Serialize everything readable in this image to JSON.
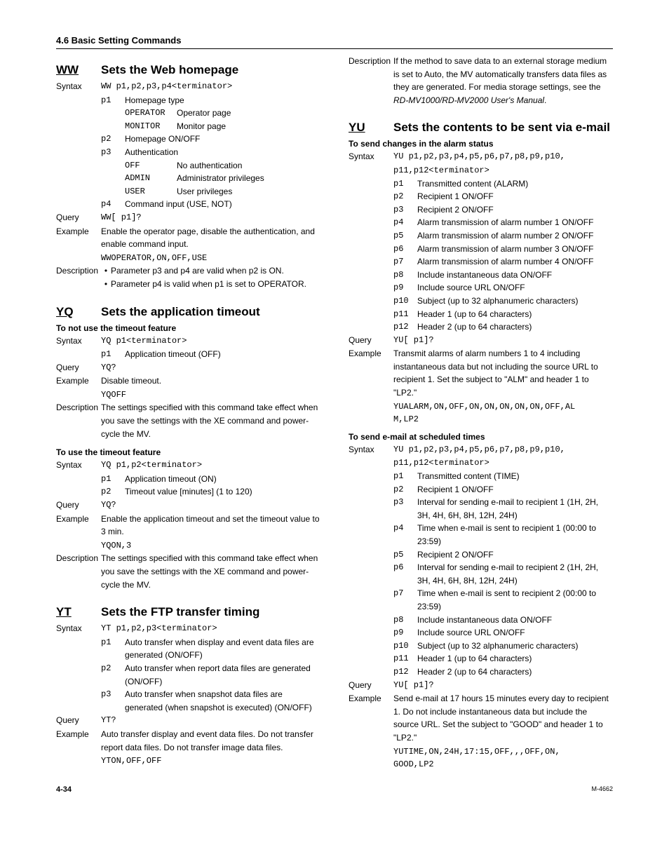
{
  "header": "4.6  Basic Setting Commands",
  "footer": {
    "left": "4-34",
    "right": "M-4662"
  },
  "left": {
    "ww": {
      "code": "WW",
      "title": "Sets the Web homepage",
      "syntax_label": "Syntax",
      "syntax": "WW p1,p2,p3,p4<terminator>",
      "params": [
        {
          "code": "p1",
          "desc": "Homepage type"
        },
        {
          "code": "p2",
          "desc": "Homepage ON/OFF"
        },
        {
          "code": "p3",
          "desc": "Authentication"
        },
        {
          "code": "p4",
          "desc": "Command input (USE, NOT)"
        }
      ],
      "p1_sub": [
        {
          "code": "OPERATOR",
          "desc": "Operator page"
        },
        {
          "code": "MONITOR",
          "desc": "Monitor page"
        }
      ],
      "p3_sub": [
        {
          "code": "OFF",
          "desc": "No authentication"
        },
        {
          "code": "ADMIN",
          "desc": "Administrator privileges"
        },
        {
          "code": "USER",
          "desc": "User privileges"
        }
      ],
      "query_label": "Query",
      "query": "WW[ p1]?",
      "example_label": "Example",
      "example_text": "Enable the operator page, disable the authentication, and enable command input.",
      "example_code": "WWOPERATOR,ON,OFF,USE",
      "desc_label": "Description",
      "desc_bullets": [
        "Parameter p3 and p4 are valid when p2 is ON.",
        "Parameter p4 is valid when p1 is set to OPERATOR."
      ]
    },
    "yq": {
      "code": "YQ",
      "title": "Sets the application timeout",
      "sub1": {
        "heading": "To not use the timeout feature",
        "syntax_label": "Syntax",
        "syntax": "YQ p1<terminator>",
        "params": [
          {
            "code": "p1",
            "desc": "Application timeout (OFF)"
          }
        ],
        "query_label": "Query",
        "query": "YQ?",
        "example_label": "Example",
        "example_text": "Disable timeout.",
        "example_code": "YQOFF",
        "desc_label": "Description",
        "desc": "The settings specified with this command take effect when you save the settings with the XE command and power-cycle the MV."
      },
      "sub2": {
        "heading": "To use the timeout feature",
        "syntax_label": "Syntax",
        "syntax": "YQ p1,p2<terminator>",
        "params": [
          {
            "code": "p1",
            "desc": "Application timeout (ON)"
          },
          {
            "code": "p2",
            "desc": "Timeout value [minutes] (1 to 120)"
          }
        ],
        "query_label": "Query",
        "query": "YQ?",
        "example_label": "Example",
        "example_text": "Enable the application timeout and set the timeout value to 3 min.",
        "example_code": "YQON,3",
        "desc_label": "Description",
        "desc": "The settings specified with this command take effect when you save the settings with the XE command and power-cycle the MV."
      }
    },
    "yt": {
      "code": "YT",
      "title": "Sets the FTP transfer timing",
      "syntax_label": "Syntax",
      "syntax": "YT p1,p2,p3<terminator>",
      "params": [
        {
          "code": "p1",
          "desc": "Auto transfer when display and event data files are generated (ON/OFF)"
        },
        {
          "code": "p2",
          "desc": "Auto transfer when report data files are generated (ON/OFF)"
        },
        {
          "code": "p3",
          "desc": "Auto transfer when snapshot data files are generated (when snapshot is executed) (ON/OFF)"
        }
      ],
      "query_label": "Query",
      "query": "YT?",
      "example_label": "Example",
      "example_text": "Auto transfer display and event data files. Do not transfer report data files. Do not transfer image data files.",
      "example_code": "YTON,OFF,OFF"
    }
  },
  "right": {
    "yt_desc": {
      "label": "Description",
      "text1": "If the method to save data to an external storage medium is set to Auto, the MV automatically transfers data files as they are generated. For media storage settings, see the ",
      "italic": "RD-MV1000/RD-MV2000 User's Manual",
      "text2": "."
    },
    "yu": {
      "code": "YU",
      "title": "Sets the contents to be sent via e-mail",
      "sub1": {
        "heading": "To send changes in the alarm status",
        "syntax_label": "Syntax",
        "syntax1": "YU p1,p2,p3,p4,p5,p6,p7,p8,p9,p10,",
        "syntax2": "p11,p12<terminator>",
        "params": [
          {
            "code": "p1",
            "desc": "Transmitted content (ALARM)"
          },
          {
            "code": "p2",
            "desc": "Recipient 1 ON/OFF"
          },
          {
            "code": "p3",
            "desc": "Recipient 2 ON/OFF"
          },
          {
            "code": "p4",
            "desc": "Alarm transmission of alarm number 1 ON/OFF"
          },
          {
            "code": "p5",
            "desc": "Alarm transmission of alarm number 2 ON/OFF"
          },
          {
            "code": "p6",
            "desc": "Alarm transmission of alarm number 3 ON/OFF"
          },
          {
            "code": "p7",
            "desc": "Alarm transmission of alarm number 4 ON/OFF"
          },
          {
            "code": "p8",
            "desc": "Include instantaneous data ON/OFF"
          },
          {
            "code": "p9",
            "desc": "Include source URL ON/OFF"
          },
          {
            "code": "p10",
            "desc": "Subject (up to 32 alphanumeric characters)"
          },
          {
            "code": "p11",
            "desc": "Header 1 (up to 64 characters)"
          },
          {
            "code": "p12",
            "desc": "Header 2 (up to 64 characters)"
          }
        ],
        "query_label": "Query",
        "query": "YU[ p1]?",
        "example_label": "Example",
        "example_text": "Transmit alarms of alarm numbers 1 to 4 including instantaneous data but not including the source URL to recipient 1. Set the subject to \"ALM\" and header 1 to \"LP2.\"",
        "example_code1": "YUALARM,ON,OFF,ON,ON,ON,ON,ON,OFF,AL",
        "example_code2": "M,LP2"
      },
      "sub2": {
        "heading": "To send e-mail at scheduled times",
        "syntax_label": "Syntax",
        "syntax1": "YU p1,p2,p3,p4,p5,p6,p7,p8,p9,p10,",
        "syntax2": "p11,p12<terminator>",
        "params": [
          {
            "code": "p1",
            "desc": "Transmitted content (TIME)"
          },
          {
            "code": "p2",
            "desc": "Recipient 1 ON/OFF"
          },
          {
            "code": "p3",
            "desc": "Interval for sending e-mail to recipient 1 (1H, 2H, 3H, 4H, 6H, 8H, 12H, 24H)"
          },
          {
            "code": "p4",
            "desc": "Time when e-mail is sent to recipient 1 (00:00 to 23:59)"
          },
          {
            "code": "p5",
            "desc": "Recipient 2 ON/OFF"
          },
          {
            "code": "p6",
            "desc": "Interval for sending e-mail to recipient 2 (1H, 2H, 3H, 4H, 6H, 8H, 12H, 24H)"
          },
          {
            "code": "p7",
            "desc": "Time when e-mail is sent to recipient 2 (00:00 to 23:59)"
          },
          {
            "code": "p8",
            "desc": "Include instantaneous data ON/OFF"
          },
          {
            "code": "p9",
            "desc": "Include source URL ON/OFF"
          },
          {
            "code": "p10",
            "desc": "Subject (up to 32 alphanumeric characters)"
          },
          {
            "code": "p11",
            "desc": "Header 1 (up to 64 characters)"
          },
          {
            "code": "p12",
            "desc": "Header 2 (up to 64 characters)"
          }
        ],
        "query_label": "Query",
        "query": "YU[ p1]?",
        "example_label": "Example",
        "example_text": "Send e-mail at 17 hours 15 minutes every day to recipient 1. Do not include instantaneous data but include the source URL. Set the subject to \"GOOD\" and header 1 to \"LP2.\"",
        "example_code1": "YUTIME,ON,24H,17:15,OFF,,,OFF,ON,",
        "example_code2": "GOOD,LP2"
      }
    }
  }
}
